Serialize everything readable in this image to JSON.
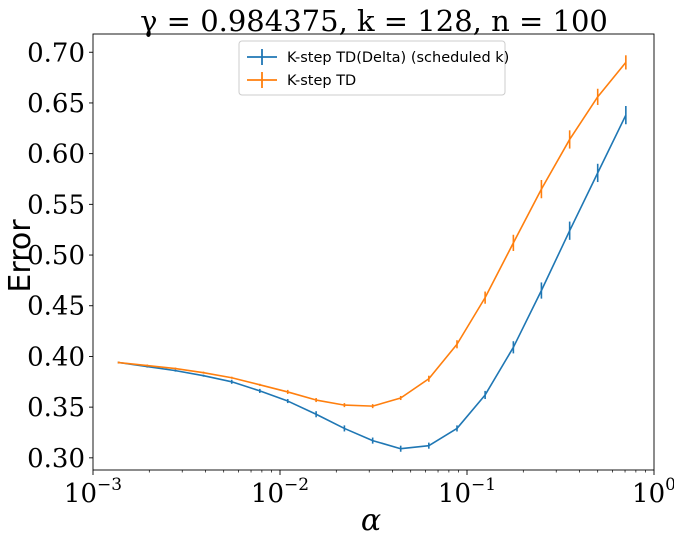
{
  "chart_data": {
    "type": "line",
    "title": "γ = 0.984375, k = 128, n = 100",
    "xlabel": "α",
    "ylabel": "Error",
    "xscale": "log",
    "xlim": [
      0.001,
      1
    ],
    "ylim": [
      0.288,
      0.718
    ],
    "x_ticks": [
      {
        "value": 0.001,
        "base": "10",
        "exp": "−3"
      },
      {
        "value": 0.01,
        "base": "10",
        "exp": "−2"
      },
      {
        "value": 0.1,
        "base": "10",
        "exp": "−1"
      },
      {
        "value": 1,
        "base": "10",
        "exp": "0"
      }
    ],
    "y_ticks": [
      0.3,
      0.35,
      0.4,
      0.45,
      0.5,
      0.55,
      0.6,
      0.65,
      0.7
    ],
    "y_tick_labels": [
      "0.30",
      "0.35",
      "0.40",
      "0.45",
      "0.50",
      "0.55",
      "0.60",
      "0.65",
      "0.70"
    ],
    "legend_position": "top-center",
    "series": [
      {
        "name": "K-step TD(Delta) (scheduled k)",
        "color": "#1f77b4",
        "x": [
          0.00137,
          0.00195,
          0.00276,
          0.0039,
          0.00552,
          0.0078,
          0.011,
          0.0156,
          0.0221,
          0.0313,
          0.0442,
          0.0625,
          0.0884,
          0.125,
          0.177,
          0.25,
          0.354,
          0.5,
          0.707
        ],
        "y": [
          0.394,
          0.39,
          0.386,
          0.381,
          0.375,
          0.366,
          0.356,
          0.343,
          0.329,
          0.317,
          0.309,
          0.312,
          0.329,
          0.362,
          0.409,
          0.465,
          0.524,
          0.581,
          0.638
        ],
        "err": [
          0.001,
          0.001,
          0.001,
          0.001,
          0.002,
          0.002,
          0.002,
          0.003,
          0.003,
          0.003,
          0.003,
          0.003,
          0.003,
          0.004,
          0.006,
          0.008,
          0.009,
          0.009,
          0.009
        ]
      },
      {
        "name": "K-step TD",
        "color": "#ff7f0e",
        "x": [
          0.00137,
          0.00195,
          0.00276,
          0.0039,
          0.00552,
          0.0078,
          0.011,
          0.0156,
          0.0221,
          0.0313,
          0.0442,
          0.0625,
          0.0884,
          0.125,
          0.177,
          0.25,
          0.354,
          0.5,
          0.707
        ],
        "y": [
          0.394,
          0.391,
          0.388,
          0.384,
          0.379,
          0.372,
          0.365,
          0.357,
          0.352,
          0.351,
          0.359,
          0.378,
          0.412,
          0.458,
          0.512,
          0.565,
          0.614,
          0.656,
          0.69
        ],
        "err": [
          0.001,
          0.001,
          0.001,
          0.001,
          0.001,
          0.001,
          0.002,
          0.002,
          0.002,
          0.002,
          0.002,
          0.003,
          0.004,
          0.006,
          0.008,
          0.009,
          0.009,
          0.008,
          0.007
        ]
      }
    ]
  }
}
